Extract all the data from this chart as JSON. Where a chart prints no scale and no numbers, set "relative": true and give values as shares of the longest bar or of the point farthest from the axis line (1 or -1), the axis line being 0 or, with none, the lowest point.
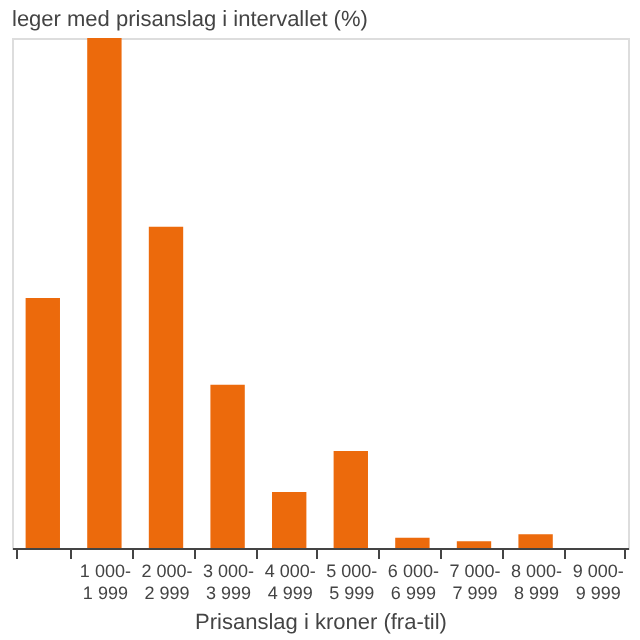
{
  "chart_data": {
    "type": "bar",
    "title": "leger med prisanslag i intervallet (%)",
    "xlabel": "Prisanslag i kroner (fra-til)",
    "categories": [
      null,
      "1 000-\n1 999",
      "2 000-\n2 999",
      "3 000-\n3 999",
      "4 000-\n4 999",
      "5 000-\n5 999",
      "6 000-\n6 999",
      "7 000-\n7 999",
      "8 000-\n8 999",
      "9 000-\n9 999"
    ],
    "values": [
      0.49,
      1,
      0.63,
      0.32,
      0.11,
      0.19,
      0.02,
      0.013,
      0.027,
      0
    ],
    "color": "#ec6a0c",
    "relative": true,
    "grid": false
  }
}
